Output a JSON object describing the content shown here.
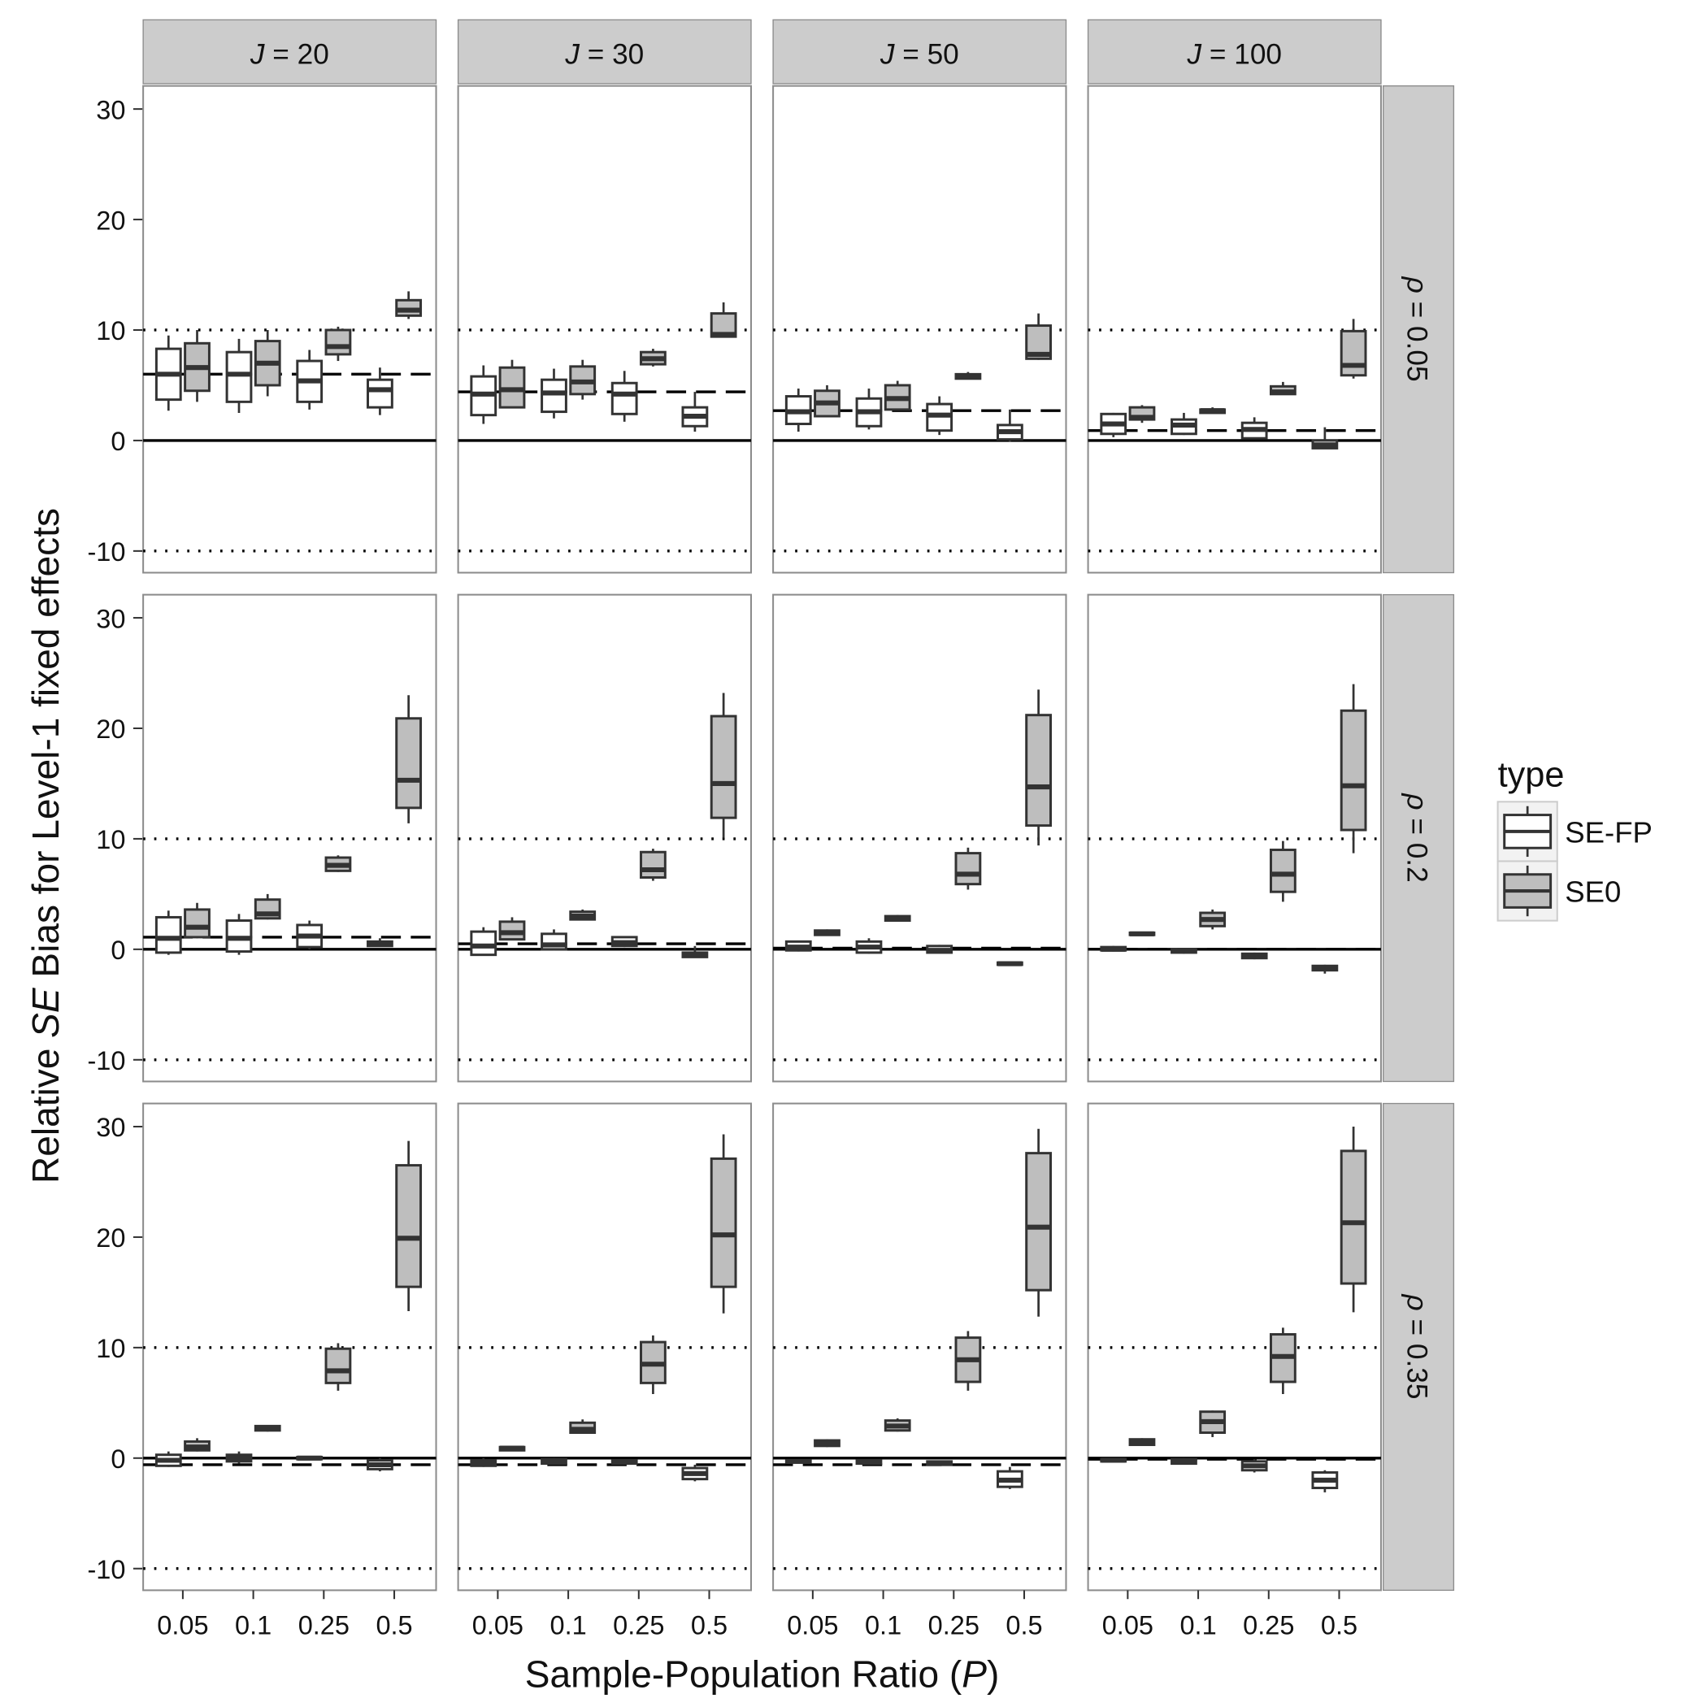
{
  "chart_data": {
    "type": "box",
    "ylabel_parts": [
      "Relative ",
      "SE",
      " Bias for Level-1 fixed effects"
    ],
    "xlabel_parts": [
      "Sample-Population Ratio (",
      "P",
      ")"
    ],
    "ylim": [
      -12,
      32
    ],
    "yticks": [
      -10,
      0,
      10,
      20,
      30
    ],
    "ytick_labels": [
      "-10",
      "0",
      "10",
      "20",
      "30"
    ],
    "categories": [
      "0.05",
      "0.1",
      "0.25",
      "0.5"
    ],
    "col_facets": [
      {
        "var": "J",
        "value": "= 20"
      },
      {
        "var": "J",
        "value": "= 30"
      },
      {
        "var": "J",
        "value": "= 50"
      },
      {
        "var": "J",
        "value": "= 100"
      }
    ],
    "row_facets": [
      {
        "var": "ρ",
        "value": "= 0.05"
      },
      {
        "var": "ρ",
        "value": "= 0.2"
      },
      {
        "var": "ρ",
        "value": "= 0.35"
      }
    ],
    "reference_lines": {
      "solid": 0,
      "dotted": [
        -10,
        10
      ]
    },
    "legend": {
      "title": "type",
      "position": "right",
      "entries": [
        {
          "name": "SE-FP",
          "fill": "#ffffff"
        },
        {
          "name": "SE0",
          "fill": "#bebebe"
        }
      ]
    },
    "box_stats_order": [
      "lower_whisker",
      "q1",
      "median",
      "q3",
      "upper_whisker"
    ],
    "panels": [
      [
        {
          "dashed": 6,
          "SE-FP": [
            [
              2.7,
              3.7,
              6,
              8.3,
              9.5
            ],
            [
              2.5,
              3.5,
              6,
              8,
              9.2
            ],
            [
              2.8,
              3.5,
              5.4,
              7.2,
              8.2
            ],
            [
              2.3,
              3,
              4.6,
              5.5,
              6.6
            ]
          ],
          "SE0": [
            [
              3.5,
              4.5,
              6.6,
              8.8,
              10
            ],
            [
              4,
              5,
              7,
              9,
              10
            ],
            [
              7.2,
              7.8,
              8.5,
              10,
              10.3
            ],
            [
              11,
              11.3,
              11.8,
              12.7,
              13.5
            ]
          ]
        },
        {
          "dashed": 4.4,
          "SE-FP": [
            [
              1.5,
              2.3,
              4.2,
              5.8,
              6.8
            ],
            [
              2,
              2.6,
              4.3,
              5.5,
              6.5
            ],
            [
              1.7,
              2.4,
              4.2,
              5.2,
              6.3
            ],
            [
              0.8,
              1.3,
              2.2,
              3,
              4.4
            ]
          ],
          "SE0": [
            [
              3,
              3,
              4.6,
              6.6,
              7.3
            ],
            [
              3.7,
              4.2,
              5.3,
              6.7,
              7.3
            ],
            [
              6.7,
              6.9,
              7.4,
              8,
              8.3
            ],
            [
              9.4,
              9.4,
              9.6,
              11.5,
              12.5
            ]
          ]
        },
        {
          "dashed": 2.7,
          "SE-FP": [
            [
              0.8,
              1.5,
              2.6,
              4,
              4.7
            ],
            [
              1,
              1.3,
              2.6,
              3.8,
              4.7
            ],
            [
              0.5,
              0.9,
              2.3,
              3.3,
              4
            ],
            [
              -0.1,
              0.1,
              0.8,
              1.4,
              2.8
            ]
          ],
          "SE0": [
            [
              2.2,
              2.2,
              3.4,
              4.5,
              5
            ],
            [
              2.8,
              2.8,
              3.8,
              5,
              5.4
            ],
            [
              5.6,
              5.6,
              5.8,
              6,
              6.2
            ],
            [
              7.3,
              7.4,
              7.8,
              10.4,
              11.5
            ]
          ]
        },
        {
          "dashed": 0.9,
          "SE-FP": [
            [
              0.3,
              0.6,
              1.5,
              2.4,
              2.5
            ],
            [
              0.5,
              0.6,
              1.4,
              1.9,
              2.5
            ],
            [
              0.2,
              0.2,
              1,
              1.6,
              2.1
            ],
            [
              -0.7,
              -0.7,
              -0.4,
              0,
              1.2
            ]
          ],
          "SE0": [
            [
              1.6,
              1.9,
              2.1,
              3,
              3.2
            ],
            [
              2.5,
              2.5,
              2.7,
              2.8,
              3
            ],
            [
              4.2,
              4.2,
              4.4,
              4.9,
              5.3
            ],
            [
              5.6,
              5.9,
              6.8,
              9.9,
              11
            ]
          ]
        }
      ],
      [
        {
          "dashed": 1.1,
          "SE-FP": [
            [
              -0.5,
              -0.3,
              1,
              2.9,
              3.5
            ],
            [
              -0.5,
              -0.2,
              1,
              2.6,
              3.2
            ],
            [
              0,
              0.2,
              1.2,
              2.2,
              2.6
            ],
            [
              0.3,
              0.3,
              0.5,
              0.7,
              1
            ]
          ],
          "SE0": [
            [
              1,
              1.1,
              2,
              3.6,
              4.2
            ],
            [
              2.7,
              2.8,
              3.2,
              4.5,
              5
            ],
            [
              7,
              7.1,
              7.6,
              8.3,
              8.5
            ],
            [
              11.4,
              12.8,
              15.3,
              20.9,
              23
            ]
          ]
        },
        {
          "dashed": 0.5,
          "SE-FP": [
            [
              -0.6,
              -0.5,
              0.3,
              1.6,
              2
            ],
            [
              -0.1,
              0,
              0.4,
              1.4,
              1.8
            ],
            [
              0.2,
              0.3,
              0.6,
              1.1,
              1.2
            ],
            [
              -0.7,
              -0.7,
              -0.5,
              -0.3,
              0.3
            ]
          ],
          "SE0": [
            [
              0.8,
              0.9,
              1.5,
              2.5,
              2.9
            ],
            [
              2.6,
              2.7,
              3,
              3.4,
              3.6
            ],
            [
              6.2,
              6.5,
              7.2,
              8.8,
              9.1
            ],
            [
              10.1,
              11.9,
              15,
              21.1,
              23.2
            ]
          ]
        },
        {
          "dashed": 0.1,
          "SE-FP": [
            [
              -0.2,
              -0.1,
              0.2,
              0.7,
              0.8
            ],
            [
              -0.4,
              -0.3,
              0.2,
              0.7,
              1
            ],
            [
              -0.3,
              -0.3,
              -0.1,
              0.3,
              0.4
            ],
            [
              -1.4,
              -1.4,
              -1.3,
              -1.2,
              -1.2
            ]
          ],
          "SE0": [
            [
              1.3,
              1.3,
              1.5,
              1.7,
              1.8
            ],
            [
              2.6,
              2.6,
              2.8,
              3,
              3.1
            ],
            [
              5.4,
              5.9,
              6.8,
              8.7,
              9.2
            ],
            [
              9.4,
              11.2,
              14.7,
              21.2,
              23.5
            ]
          ]
        },
        {
          "dashed": 0,
          "SE-FP": [
            [
              -0.2,
              -0.1,
              0,
              0.2,
              0.3
            ],
            [
              -0.4,
              -0.3,
              -0.1,
              0,
              0.1
            ],
            [
              -0.9,
              -0.8,
              -0.6,
              -0.4,
              -0.3
            ],
            [
              -2.2,
              -1.9,
              -1.7,
              -1.5,
              -1.4
            ]
          ],
          "SE0": [
            [
              1.2,
              1.3,
              1.4,
              1.5,
              1.6
            ],
            [
              1.8,
              2.1,
              2.7,
              3.3,
              3.6
            ],
            [
              4.3,
              5.2,
              6.8,
              9,
              9.8
            ],
            [
              8.7,
              10.8,
              14.8,
              21.6,
              24
            ]
          ]
        }
      ],
      [
        {
          "dashed": -0.6,
          "SE-FP": [
            [
              -0.8,
              -0.7,
              -0.2,
              0.3,
              0.6
            ],
            [
              -0.5,
              -0.3,
              0,
              0.3,
              0.6
            ],
            [
              -0.1,
              -0.1,
              0,
              0.1,
              0.2
            ],
            [
              -1.2,
              -1,
              -0.6,
              -0.2,
              0
            ]
          ],
          "SE0": [
            [
              0.6,
              0.7,
              1,
              1.5,
              1.8
            ],
            [
              2.4,
              2.5,
              2.7,
              2.9,
              3
            ],
            [
              6.1,
              6.8,
              7.9,
              9.9,
              10.4
            ],
            [
              13.3,
              15.5,
              19.9,
              26.5,
              28.7
            ]
          ]
        },
        {
          "dashed": -0.6,
          "SE-FP": [
            [
              -0.8,
              -0.7,
              -0.4,
              -0.2,
              0
            ],
            [
              -0.6,
              -0.5,
              -0.3,
              -0.1,
              0
            ],
            [
              -0.5,
              -0.5,
              -0.3,
              -0.2,
              -0.1
            ],
            [
              -2.1,
              -1.9,
              -1.4,
              -0.9,
              -0.6
            ]
          ],
          "SE0": [
            [
              0.7,
              0.7,
              0.9,
              1,
              1.1
            ],
            [
              2.2,
              2.3,
              2.6,
              3.2,
              3.5
            ],
            [
              5.8,
              6.8,
              8.5,
              10.5,
              11.1
            ],
            [
              13.1,
              15.5,
              20.2,
              27.1,
              29.3
            ]
          ]
        },
        {
          "dashed": -0.6,
          "SE-FP": [
            [
              -0.4,
              -0.4,
              -0.3,
              -0.2,
              -0.1
            ],
            [
              -0.5,
              -0.5,
              -0.3,
              -0.2,
              -0.1
            ],
            [
              -0.6,
              -0.6,
              -0.5,
              -0.3,
              -0.2
            ],
            [
              -2.8,
              -2.6,
              -2,
              -1.2,
              -0.8
            ]
          ],
          "SE0": [
            [
              1,
              1.1,
              1.3,
              1.6,
              1.7
            ],
            [
              2.4,
              2.5,
              2.9,
              3.4,
              3.6
            ],
            [
              6.1,
              6.9,
              8.9,
              10.9,
              11.5
            ],
            [
              12.8,
              15.2,
              20.9,
              27.6,
              29.8
            ]
          ]
        },
        {
          "dashed": -0.1,
          "SE-FP": [
            [
              -0.4,
              -0.3,
              -0.2,
              -0.1,
              0
            ],
            [
              -0.6,
              -0.5,
              -0.3,
              -0.1,
              0
            ],
            [
              -1.3,
              -1.1,
              -0.7,
              -0.3,
              -0.1
            ],
            [
              -3.1,
              -2.7,
              -2,
              -1.3,
              -1.1
            ]
          ],
          "SE0": [
            [
              1.2,
              1.2,
              1.4,
              1.7,
              1.8
            ],
            [
              1.9,
              2.3,
              3.3,
              4.2,
              4.3
            ],
            [
              5.8,
              6.9,
              9.2,
              11.2,
              11.8
            ],
            [
              13.2,
              15.8,
              21.3,
              27.8,
              30
            ]
          ]
        }
      ]
    ]
  },
  "colors": {
    "strip": "#cccccc",
    "panel_border": "#8c8c8c",
    "box_line": "#333333",
    "se0_fill": "#bebebe",
    "sefp_fill": "#ffffff"
  }
}
